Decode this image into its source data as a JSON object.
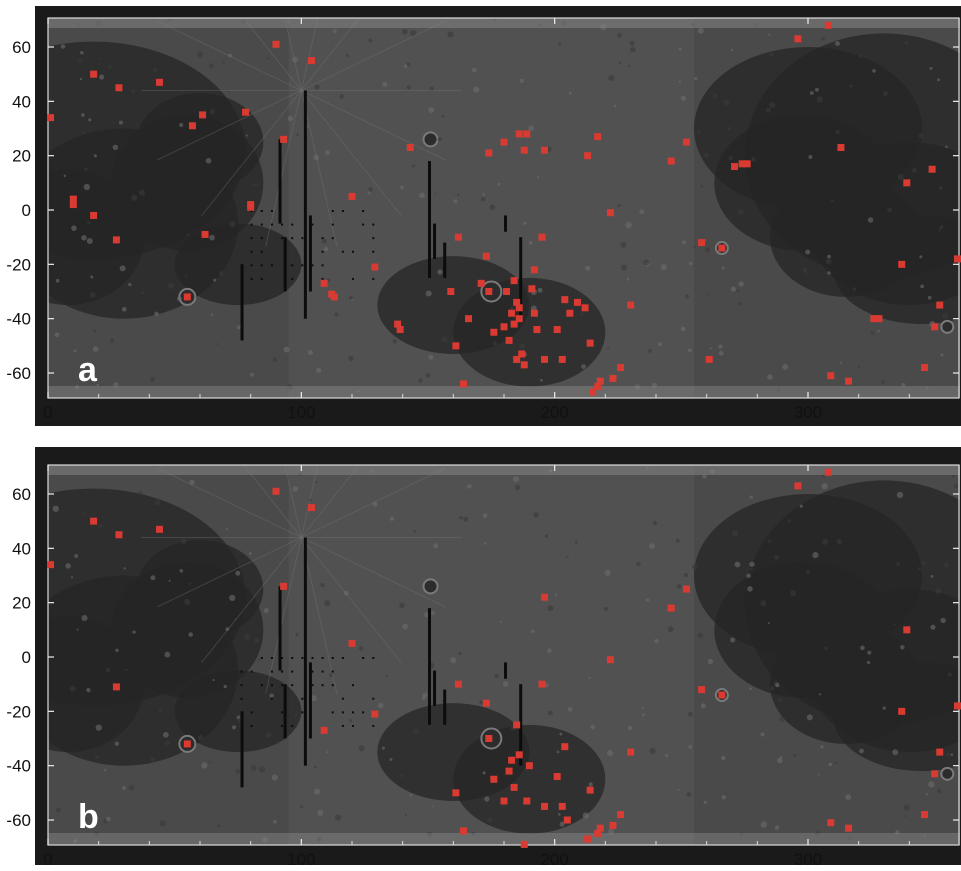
{
  "figure": {
    "panels": [
      {
        "letter": "a",
        "x_ticks": [
          "0",
          "100",
          "200",
          "300"
        ],
        "y_ticks": [
          "60",
          "40",
          "20",
          "0",
          "-20",
          "-40",
          "-60"
        ],
        "points": [
          [
            1,
            34
          ],
          [
            10,
            4
          ],
          [
            10,
            2
          ],
          [
            18,
            50
          ],
          [
            18,
            -2
          ],
          [
            27,
            -11
          ],
          [
            28,
            45
          ],
          [
            44,
            47
          ],
          [
            55,
            -32
          ],
          [
            57,
            31
          ],
          [
            61,
            35
          ],
          [
            62,
            -9
          ],
          [
            78,
            36
          ],
          [
            80,
            2
          ],
          [
            80,
            1
          ],
          [
            90,
            61
          ],
          [
            93,
            26
          ],
          [
            104,
            55
          ],
          [
            109,
            -27
          ],
          [
            112,
            -31
          ],
          [
            113,
            -32
          ],
          [
            120,
            5
          ],
          [
            129,
            -21
          ],
          [
            138,
            -42
          ],
          [
            139,
            -44
          ],
          [
            143,
            23
          ],
          [
            159,
            -30
          ],
          [
            161,
            -50
          ],
          [
            162,
            -10
          ],
          [
            164,
            -64
          ],
          [
            166,
            -40
          ],
          [
            171,
            -27
          ],
          [
            173,
            -17
          ],
          [
            174,
            21
          ],
          [
            174,
            -30
          ],
          [
            176,
            -45
          ],
          [
            180,
            25
          ],
          [
            180,
            -43
          ],
          [
            181,
            -30
          ],
          [
            182,
            -48
          ],
          [
            183,
            -38
          ],
          [
            184,
            -42
          ],
          [
            184,
            -26
          ],
          [
            185,
            -34
          ],
          [
            185,
            -55
          ],
          [
            186,
            -36
          ],
          [
            186,
            -40
          ],
          [
            186,
            28
          ],
          [
            187,
            -53
          ],
          [
            188,
            22
          ],
          [
            188,
            -57
          ],
          [
            189,
            28
          ],
          [
            191,
            -29
          ],
          [
            192,
            -22
          ],
          [
            192,
            -38
          ],
          [
            193,
            -44
          ],
          [
            195,
            -10
          ],
          [
            196,
            22
          ],
          [
            196,
            -55
          ],
          [
            201,
            -44
          ],
          [
            203,
            -55
          ],
          [
            204,
            -33
          ],
          [
            206,
            -38
          ],
          [
            209,
            -34
          ],
          [
            212,
            -36
          ],
          [
            213,
            20
          ],
          [
            214,
            -49
          ],
          [
            215,
            -67
          ],
          [
            217,
            27
          ],
          [
            217,
            -65
          ],
          [
            218,
            -63
          ],
          [
            222,
            -1
          ],
          [
            223,
            -62
          ],
          [
            226,
            -58
          ],
          [
            230,
            -35
          ],
          [
            246,
            18
          ],
          [
            252,
            25
          ],
          [
            258,
            -12
          ],
          [
            261,
            -55
          ],
          [
            266,
            -14
          ],
          [
            271,
            16
          ],
          [
            274,
            17
          ],
          [
            276,
            17
          ],
          [
            296,
            63
          ],
          [
            308,
            68
          ],
          [
            309,
            -61
          ],
          [
            313,
            23
          ],
          [
            316,
            -63
          ],
          [
            326,
            -40
          ],
          [
            328,
            -40
          ],
          [
            337,
            -20
          ],
          [
            339,
            10
          ],
          [
            346,
            -58
          ],
          [
            349,
            15
          ],
          [
            350,
            -43
          ],
          [
            352,
            -35
          ],
          [
            359,
            -18
          ]
        ]
      },
      {
        "letter": "b",
        "x_ticks": [
          "0",
          "100",
          "200",
          "300"
        ],
        "y_ticks": [
          "60",
          "40",
          "20",
          "0",
          "-20",
          "-40",
          "-60"
        ],
        "points": [
          [
            1,
            34
          ],
          [
            18,
            50
          ],
          [
            27,
            -11
          ],
          [
            28,
            45
          ],
          [
            44,
            47
          ],
          [
            55,
            -32
          ],
          [
            90,
            61
          ],
          [
            93,
            26
          ],
          [
            104,
            55
          ],
          [
            109,
            -27
          ],
          [
            120,
            5
          ],
          [
            129,
            -21
          ],
          [
            161,
            -50
          ],
          [
            162,
            -10
          ],
          [
            164,
            -64
          ],
          [
            173,
            -17
          ],
          [
            174,
            -30
          ],
          [
            176,
            -45
          ],
          [
            180,
            -53
          ],
          [
            182,
            -42
          ],
          [
            183,
            -38
          ],
          [
            184,
            -48
          ],
          [
            185,
            -25
          ],
          [
            186,
            -36
          ],
          [
            188,
            -69
          ],
          [
            189,
            -53
          ],
          [
            190,
            -40
          ],
          [
            195,
            -10
          ],
          [
            196,
            22
          ],
          [
            196,
            -55
          ],
          [
            201,
            -44
          ],
          [
            203,
            -55
          ],
          [
            204,
            -33
          ],
          [
            205,
            -60
          ],
          [
            213,
            -67
          ],
          [
            214,
            -49
          ],
          [
            217,
            -65
          ],
          [
            218,
            -63
          ],
          [
            222,
            -1
          ],
          [
            223,
            -62
          ],
          [
            226,
            -58
          ],
          [
            230,
            -35
          ],
          [
            246,
            18
          ],
          [
            252,
            25
          ],
          [
            258,
            -12
          ],
          [
            266,
            -14
          ],
          [
            296,
            63
          ],
          [
            308,
            68
          ],
          [
            309,
            -61
          ],
          [
            316,
            -63
          ],
          [
            337,
            -20
          ],
          [
            339,
            10
          ],
          [
            346,
            -58
          ],
          [
            350,
            -43
          ],
          [
            352,
            -35
          ],
          [
            359,
            -18
          ]
        ]
      }
    ],
    "colors": {
      "marker": "#d93a32",
      "frame": "#1a1a1a",
      "surface": "#4a4a4a"
    }
  }
}
